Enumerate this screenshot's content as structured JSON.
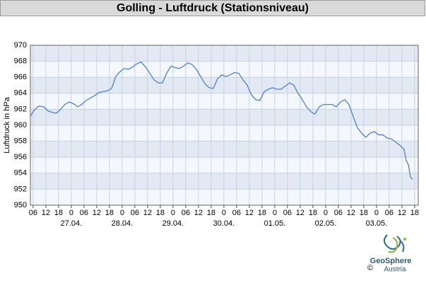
{
  "chart_data": {
    "type": "line",
    "title": "Golling - Luftdruck (Stationsniveau)",
    "y_label": "Luftdruck in hPa",
    "color": "#4f7fd8",
    "grid": true,
    "bands": true,
    "xlim": [
      4.7,
      187.7
    ],
    "ylim": [
      950,
      970
    ],
    "yticks": [
      950,
      952,
      954,
      956,
      958,
      960,
      962,
      964,
      966,
      968,
      970
    ],
    "xticks": [
      {
        "value": 6,
        "label": "06"
      },
      {
        "value": 12,
        "label": "12"
      },
      {
        "value": 18,
        "label": "18"
      },
      {
        "value": 24,
        "label": "0"
      },
      {
        "value": 30,
        "label": "06"
      },
      {
        "value": 36,
        "label": "12"
      },
      {
        "value": 42,
        "label": "18"
      },
      {
        "value": 48,
        "label": "0"
      },
      {
        "value": 54,
        "label": "06"
      },
      {
        "value": 60,
        "label": "12"
      },
      {
        "value": 66,
        "label": "18"
      },
      {
        "value": 72,
        "label": "0"
      },
      {
        "value": 78,
        "label": "06"
      },
      {
        "value": 84,
        "label": "12"
      },
      {
        "value": 90,
        "label": "18"
      },
      {
        "value": 96,
        "label": "0"
      },
      {
        "value": 102,
        "label": "06"
      },
      {
        "value": 108,
        "label": "12"
      },
      {
        "value": 114,
        "label": "18"
      },
      {
        "value": 120,
        "label": "0"
      },
      {
        "value": 126,
        "label": "06"
      },
      {
        "value": 132,
        "label": "12"
      },
      {
        "value": 138,
        "label": "18"
      },
      {
        "value": 144,
        "label": "0"
      },
      {
        "value": 150,
        "label": "06"
      },
      {
        "value": 156,
        "label": "12"
      },
      {
        "value": 162,
        "label": "18"
      },
      {
        "value": 168,
        "label": "0"
      },
      {
        "value": 174,
        "label": "06"
      },
      {
        "value": 180,
        "label": "12"
      },
      {
        "value": 186,
        "label": "18"
      }
    ],
    "day_labels": [
      {
        "value": 24,
        "label": "27.04."
      },
      {
        "value": 48,
        "label": "28.04."
      },
      {
        "value": 72,
        "label": "29.04."
      },
      {
        "value": 96,
        "label": "30.04."
      },
      {
        "value": 120,
        "label": "01.05."
      },
      {
        "value": 144,
        "label": "02.05."
      },
      {
        "value": 168,
        "label": "03.05."
      }
    ],
    "x": [
      5,
      6,
      8,
      9,
      11,
      13,
      15,
      17,
      19,
      21,
      23,
      25,
      27,
      29,
      31,
      33,
      35,
      37,
      39,
      41,
      43,
      45,
      47,
      49,
      51,
      53,
      55,
      57,
      59,
      61,
      63,
      65,
      67,
      69,
      71,
      73,
      75,
      77,
      79,
      81,
      83,
      85,
      87,
      89,
      91,
      93,
      95,
      97,
      99,
      101,
      103,
      105,
      107,
      109,
      111,
      113,
      115,
      117,
      119,
      121,
      123,
      125,
      127,
      129,
      131,
      133,
      135,
      137,
      139,
      141,
      143,
      145,
      147,
      149,
      151,
      153,
      155,
      157,
      159,
      161,
      163,
      165,
      167,
      169,
      171,
      173,
      175,
      177,
      179,
      181,
      182,
      183,
      184,
      185
    ],
    "values": [
      961.2,
      961.7,
      962.3,
      962.4,
      962.3,
      961.8,
      961.6,
      961.5,
      962.0,
      962.6,
      962.9,
      962.7,
      962.3,
      962.6,
      963.1,
      963.4,
      963.7,
      964.1,
      964.2,
      964.3,
      964.6,
      966.1,
      966.7,
      967.1,
      967.0,
      967.3,
      967.7,
      967.9,
      967.3,
      966.5,
      965.7,
      965.3,
      965.3,
      966.5,
      967.4,
      967.2,
      967.1,
      967.4,
      967.8,
      967.6,
      967.0,
      966.1,
      965.2,
      964.7,
      964.6,
      965.8,
      966.3,
      966.1,
      966.3,
      966.6,
      966.5,
      965.7,
      965.0,
      963.8,
      963.2,
      963.1,
      964.2,
      964.5,
      964.7,
      964.5,
      964.5,
      964.9,
      965.3,
      965.0,
      964.0,
      963.2,
      962.3,
      961.7,
      961.4,
      962.3,
      962.6,
      962.6,
      962.6,
      962.3,
      962.9,
      963.2,
      962.6,
      961.1,
      959.7,
      959.0,
      958.5,
      959.0,
      959.2,
      958.8,
      958.8,
      958.4,
      958.3,
      957.9,
      957.5,
      957.0,
      955.6,
      955.1,
      953.6,
      953.2
    ]
  },
  "footer": {
    "brand": "GeoSphere",
    "sub": "Austria",
    "copyright": "©"
  }
}
